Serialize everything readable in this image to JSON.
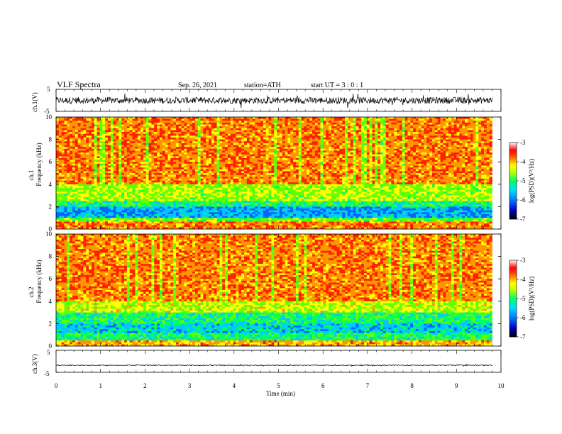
{
  "header": {
    "title": "VLF  Spectra",
    "date": "Sep. 26, 2021",
    "station": "station=ATH",
    "start_ut": "start  UT  =   3  : 0  : 1"
  },
  "colors": {
    "waveform": "#000000",
    "colormap": [
      "#000000",
      "#0000c8",
      "#0064ff",
      "#00c8ff",
      "#00ff64",
      "#64ff00",
      "#ffff00",
      "#ff9600",
      "#ff2000",
      "#ffffff"
    ]
  },
  "chart_data": [
    {
      "type": "line",
      "panel": "ch1-waveform",
      "ylabel": "ch.1(V)",
      "ylim": [
        -5,
        5
      ],
      "yticks": [
        "5",
        "-5"
      ],
      "xlim": [
        0,
        10
      ],
      "description_values": {
        "mean": 0,
        "typical_amplitude": 1.5
      }
    },
    {
      "type": "heatmap",
      "panel": "ch1-spectrogram",
      "ylabel": "ch.1\nFrequency (kHz)",
      "ylabel_lines": [
        "ch.1",
        "Frequency (kHz)"
      ],
      "ylim": [
        0,
        10
      ],
      "yticks": [
        "0",
        "2",
        "4",
        "6",
        "8",
        "10"
      ],
      "xlim": [
        0,
        10
      ],
      "colorbar": {
        "label": "log(PSD)(V²/Hz)",
        "range": [
          -7,
          -3
        ],
        "ticks": [
          "-3",
          "-4",
          "-5",
          "-6",
          "-7"
        ]
      },
      "bands": [
        {
          "freq_range": [
            0,
            0.6
          ],
          "log_psd": -3.8
        },
        {
          "freq_range": [
            0.6,
            1.0
          ],
          "log_psd": -4.8
        },
        {
          "freq_range": [
            1.0,
            2.0
          ],
          "log_psd": -5.8
        },
        {
          "freq_range": [
            2.0,
            2.5
          ],
          "log_psd": -5.2
        },
        {
          "freq_range": [
            2.5,
            4.0
          ],
          "log_psd": -4.6
        },
        {
          "freq_range": [
            4.0,
            10.0
          ],
          "log_psd": -3.8
        }
      ]
    },
    {
      "type": "heatmap",
      "panel": "ch2-spectrogram",
      "ylabel": "ch.2\nFrequency (kHz)",
      "ylabel_lines": [
        "ch.2",
        "Frequency (kHz)"
      ],
      "ylim": [
        0,
        10
      ],
      "yticks": [
        "0",
        "2",
        "4",
        "6",
        "8",
        "10"
      ],
      "xlim": [
        0,
        10
      ],
      "colorbar": {
        "label": "log(PSD)(V²/Hz)",
        "range": [
          -7,
          -3
        ],
        "ticks": [
          "-3",
          "-4",
          "-5",
          "-6",
          "-7"
        ]
      },
      "bands": [
        {
          "freq_range": [
            0,
            0.5
          ],
          "log_psd": -4.0
        },
        {
          "freq_range": [
            0.5,
            1.2
          ],
          "log_psd": -5.2
        },
        {
          "freq_range": [
            1.2,
            2.0
          ],
          "log_psd": -5.6
        },
        {
          "freq_range": [
            2.0,
            3.0
          ],
          "log_psd": -5.2
        },
        {
          "freq_range": [
            3.0,
            4.0
          ],
          "log_psd": -4.5
        },
        {
          "freq_range": [
            4.0,
            10.0
          ],
          "log_psd": -3.8
        }
      ]
    },
    {
      "type": "line",
      "panel": "ch3-waveform",
      "ylabel": "ch.3(V)",
      "ylim": [
        -5,
        5
      ],
      "yticks": [
        "5",
        "-5"
      ],
      "xlim": [
        0,
        10
      ],
      "xlabel": "Time  (min)",
      "xticks": [
        "0",
        "1",
        "2",
        "3",
        "4",
        "5",
        "6",
        "7",
        "8",
        "9",
        "10"
      ],
      "description_values": {
        "mean": -1.8,
        "typical_amplitude": 0.2
      }
    }
  ]
}
